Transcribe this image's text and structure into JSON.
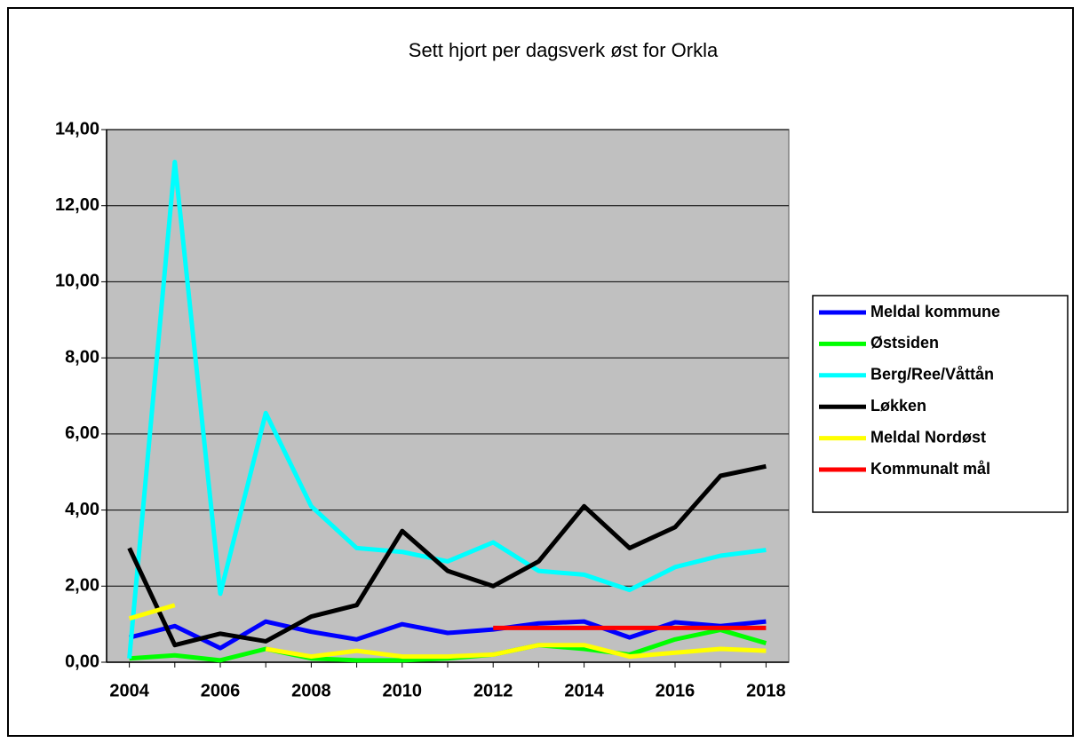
{
  "chart_data": {
    "type": "line",
    "title": "Sett hjort per dagsverk øst for Orkla",
    "x": [
      2004,
      2005,
      2006,
      2007,
      2008,
      2009,
      2010,
      2011,
      2012,
      2013,
      2014,
      2015,
      2016,
      2017,
      2018
    ],
    "xlim": [
      2003.5,
      2018.5
    ],
    "xticks": [
      2004,
      2006,
      2008,
      2010,
      2012,
      2014,
      2016,
      2018
    ],
    "ylim": [
      0,
      14
    ],
    "yticks": [
      {
        "value": 0,
        "label": "0,00"
      },
      {
        "value": 2,
        "label": "2,00"
      },
      {
        "value": 4,
        "label": "4,00"
      },
      {
        "value": 6,
        "label": "6,00"
      },
      {
        "value": 8,
        "label": "8,00"
      },
      {
        "value": 10,
        "label": "10,00"
      },
      {
        "value": 12,
        "label": "12,00"
      },
      {
        "value": 14,
        "label": "14,00"
      }
    ],
    "grid": true,
    "legend": "right",
    "series": [
      {
        "name": "Meldal kommune",
        "color": "#0000ff",
        "values": [
          0.65,
          0.95,
          0.37,
          1.07,
          0.8,
          0.6,
          1.0,
          0.77,
          0.86,
          1.02,
          1.07,
          0.65,
          1.05,
          0.95,
          1.07
        ]
      },
      {
        "name": "Østsiden",
        "color": "#00ff00",
        "values": [
          0.1,
          0.18,
          0.05,
          0.35,
          0.1,
          0.05,
          0.05,
          0.1,
          0.2,
          0.45,
          0.35,
          0.2,
          0.6,
          0.85,
          0.5
        ]
      },
      {
        "name": "Berg/Ree/Våttån",
        "color": "#00ffff",
        "values": [
          0.1,
          13.15,
          1.8,
          6.55,
          4.1,
          3.0,
          2.9,
          2.65,
          3.15,
          2.4,
          2.3,
          1.9,
          2.5,
          2.8,
          2.95
        ]
      },
      {
        "name": "Løkken",
        "color": "#000000",
        "values": [
          3.0,
          0.45,
          0.75,
          0.55,
          1.2,
          1.5,
          3.45,
          2.4,
          2.0,
          2.65,
          4.1,
          3.0,
          3.55,
          4.9,
          5.15
        ]
      },
      {
        "name": "Meldal Nordøst",
        "color": "#ffff00",
        "values": [
          1.15,
          1.5,
          null,
          0.35,
          0.15,
          0.3,
          0.15,
          0.15,
          0.2,
          0.45,
          0.45,
          0.15,
          0.25,
          0.35,
          0.3
        ]
      },
      {
        "name": "Kommunalt mål",
        "color": "#ff0000",
        "values": [
          null,
          null,
          null,
          null,
          null,
          null,
          null,
          null,
          0.9,
          0.9,
          0.9,
          0.9,
          0.9,
          0.9,
          0.9
        ]
      }
    ]
  }
}
